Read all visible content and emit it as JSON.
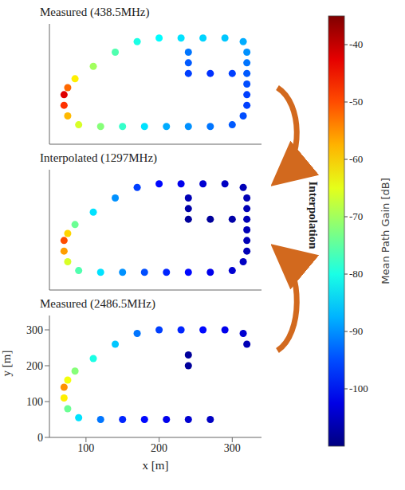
{
  "chart_data": {
    "type": "scatter",
    "marker": "circle",
    "x_label": "x [m]",
    "y_label": "y [m]",
    "xlim": [
      50,
      340
    ],
    "xticks": [
      100,
      200,
      300
    ],
    "ylim": [
      0,
      340
    ],
    "yticks": [
      0,
      100,
      200,
      300
    ],
    "x": [
      70,
      70,
      75,
      90,
      120,
      150,
      180,
      210,
      240,
      270,
      300,
      315,
      320,
      320,
      320,
      320,
      320,
      320,
      315,
      290,
      260,
      230,
      200,
      170,
      140,
      110,
      85,
      75,
      240,
      240,
      240,
      270,
      300
    ],
    "y": [
      140,
      110,
      80,
      55,
      50,
      50,
      50,
      50,
      50,
      50,
      55,
      80,
      110,
      140,
      170,
      200,
      230,
      260,
      290,
      300,
      300,
      300,
      300,
      290,
      260,
      220,
      185,
      160,
      260,
      230,
      200,
      200,
      200
    ],
    "panels": [
      {
        "title": "Measured (438.5MHz)",
        "values": [
          -42,
          -48,
          -58,
          -66,
          -72,
          -78,
          -84,
          -88,
          -90,
          -92,
          -94,
          -95,
          -96,
          -96,
          -95,
          -94,
          -92,
          -90,
          -88,
          -86,
          -85,
          -84,
          -82,
          -80,
          -76,
          -70,
          -62,
          -52,
          -92,
          -94,
          -96,
          -97,
          -96
        ]
      },
      {
        "title": "Interpolated (1297MHz)",
        "values": [
          -50,
          -56,
          -66,
          -76,
          -84,
          -90,
          -95,
          -98,
          -100,
          -102,
          -104,
          -105,
          -106,
          -106,
          -106,
          -106,
          -106,
          -106,
          -106,
          -105,
          -104,
          -102,
          -100,
          -96,
          -90,
          -84,
          -74,
          -60,
          -106,
          -107,
          -108,
          -108,
          -107
        ]
      },
      {
        "title": "Measured (2486.5MHz)",
        "values": [
          -55,
          -62,
          -74,
          -84,
          -92,
          -98,
          -100,
          -102,
          -104,
          -105,
          null,
          null,
          null,
          null,
          null,
          null,
          null,
          -106,
          -104,
          -102,
          -100,
          -98,
          -96,
          -92,
          -86,
          -80,
          -72,
          -64,
          null,
          -108,
          -108,
          null,
          null
        ]
      }
    ],
    "annotation": "Interpolation",
    "colorbar": {
      "label": "Mean Path Gain [dB]",
      "range": [
        -110,
        -35
      ],
      "ticks": [
        -100,
        -90,
        -80,
        -70,
        -60,
        -50,
        -40
      ]
    }
  }
}
